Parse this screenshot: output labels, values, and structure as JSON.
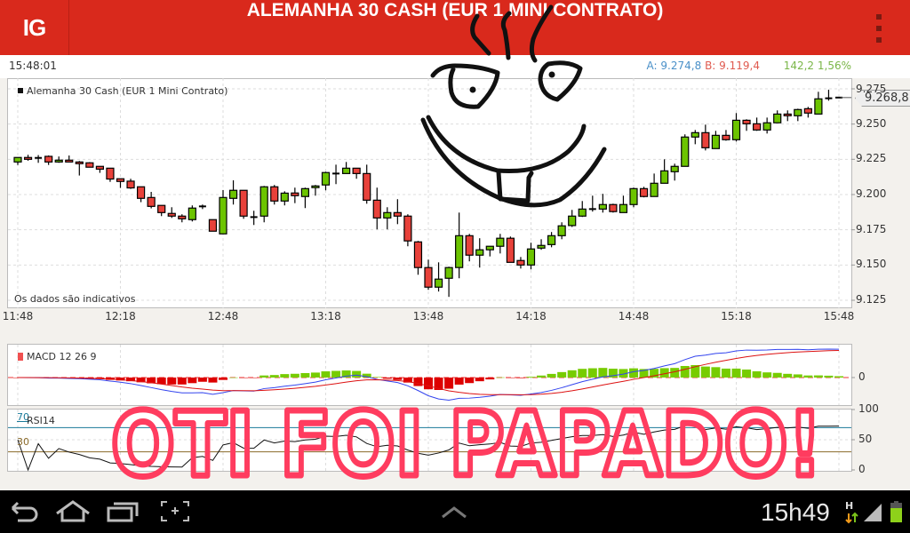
{
  "header": {
    "logo": "IG",
    "title": "ALEMANHA 30 CASH (EUR 1 MINI CONTRATO)",
    "menu_icon": "overflow-menu-icon"
  },
  "quote": {
    "time": "15:48:01",
    "ask_label": "A:",
    "ask": "9.274,8",
    "bid_label": "B:",
    "bid": "9.119,4",
    "change": "142,2",
    "change_pct": "1,56%",
    "colors": {
      "ask": "#4a90c8",
      "bid": "#e05a4f",
      "change": "#7ab648"
    }
  },
  "chart": {
    "instrument": "Alemanha 30 Cash (EUR 1 Mini Contrato)",
    "note": "Os dados são indicativos",
    "last_price": "9.268,8"
  },
  "chart_data": [
    {
      "type": "candlestick",
      "title": "Alemanha 30 Cash (EUR 1 Mini Contrato)",
      "interval_minutes": 3,
      "xlabels": [
        "11:48",
        "12:18",
        "12:48",
        "13:18",
        "13:48",
        "14:18",
        "14:48",
        "15:18",
        "15:48"
      ],
      "yticks": [
        "9.275",
        "9.250",
        "9.225",
        "9.200",
        "9.175",
        "9.150",
        "9.125"
      ],
      "ylim": [
        9125,
        9275
      ],
      "grid": true,
      "last_price": 9268.8,
      "colors": {
        "up": "#6cc400",
        "down": "#e8413a"
      },
      "ohlc": [
        [
          9223.1,
          9226.3,
          9221,
          9226.3
        ],
        [
          9226.3,
          9228.2,
          9224,
          9225
        ],
        [
          9226,
          9228,
          9222.5,
          9226
        ],
        [
          9227.1,
          9227.7,
          9221,
          9223.1
        ],
        [
          9223.1,
          9227,
          9222.5,
          9224.4
        ],
        [
          9224.4,
          9227.7,
          9223,
          9223.1
        ],
        [
          9223.1,
          9223.8,
          9213.5,
          9221.9
        ],
        [
          9222.5,
          9223,
          9219.4,
          9219.4
        ],
        [
          9220,
          9220,
          9215.4,
          9218
        ],
        [
          9218.7,
          9218.7,
          9209,
          9211
        ],
        [
          9211.2,
          9211.2,
          9204.7,
          9209.3
        ],
        [
          9209.5,
          9211.2,
          9204,
          9204.7
        ],
        [
          9205.5,
          9205.5,
          9194.6,
          9197.3
        ],
        [
          9197.9,
          9201.9,
          9190.2,
          9191.6
        ],
        [
          9192.3,
          9192.3,
          9184.7,
          9187.2
        ],
        [
          9186.6,
          9191,
          9183.4,
          9184.7
        ],
        [
          9184.7,
          9186,
          9180.3,
          9182.8
        ],
        [
          9182.2,
          9192.3,
          9180.9,
          9190.4
        ],
        [
          9191.6,
          9192.9,
          9189.7,
          9191.6
        ],
        [
          9182.2,
          9182.2,
          9174,
          9174
        ],
        [
          9172.1,
          9203.2,
          9172.1,
          9197.9
        ],
        [
          9197.3,
          9210.1,
          9192.9,
          9203
        ],
        [
          9203,
          9203,
          9182.8,
          9184.7
        ],
        [
          9184,
          9188.5,
          9178.4,
          9184
        ],
        [
          9184.7,
          9206.1,
          9180.3,
          9205.5
        ],
        [
          9205.5,
          9206.8,
          9192.9,
          9195.4
        ],
        [
          9195.4,
          9202.3,
          9192.3,
          9201
        ],
        [
          9201.1,
          9204.9,
          9193.9,
          9199.2
        ],
        [
          9198.6,
          9204.9,
          9190.4,
          9204.2
        ],
        [
          9204.9,
          9206.8,
          9199.2,
          9206.1
        ],
        [
          9206.8,
          9216.2,
          9203,
          9215.6
        ],
        [
          9214.9,
          9221.2,
          9207.4,
          9214.9
        ],
        [
          9214.9,
          9223.1,
          9214.9,
          9218.7
        ],
        [
          9218.7,
          9218.7,
          9211.2,
          9214.9
        ],
        [
          9214.9,
          9221.2,
          9193.5,
          9196
        ],
        [
          9196,
          9204.9,
          9175.3,
          9183.4
        ],
        [
          9183.4,
          9191,
          9175.3,
          9187.2
        ],
        [
          9187.2,
          9196.7,
          9179,
          9184.7
        ],
        [
          9184.7,
          9186,
          9163.3,
          9167.1
        ],
        [
          9166.4,
          9167.1,
          9143.1,
          9148.2
        ],
        [
          9148.2,
          9153.8,
          9132.4,
          9134.3
        ],
        [
          9134.3,
          9151.9,
          9131.2,
          9140
        ],
        [
          9140.6,
          9148.8,
          9127.4,
          9148.2
        ],
        [
          9148.2,
          9187.2,
          9140.6,
          9170.8
        ],
        [
          9170.8,
          9172.1,
          9152.6,
          9157
        ],
        [
          9157,
          9169,
          9148.2,
          9160.8
        ],
        [
          9160.8,
          9163.3,
          9156.1,
          9163.3
        ],
        [
          9163.3,
          9172.1,
          9158.2,
          9169
        ],
        [
          9169,
          9170.2,
          9151.9,
          9151.9
        ],
        [
          9153.2,
          9155.7,
          9147.5,
          9150
        ],
        [
          9150,
          9165.8,
          9146.9,
          9161.4
        ],
        [
          9162,
          9168.3,
          9160.8,
          9163.9
        ],
        [
          9164.5,
          9173.4,
          9162.6,
          9170.8
        ],
        [
          9170.8,
          9180.3,
          9168.3,
          9177.8
        ],
        [
          9178,
          9189.1,
          9177,
          9184.7
        ],
        [
          9184.7,
          9195.4,
          9184.1,
          9189.7
        ],
        [
          9189.7,
          9199.2,
          9187.9,
          9189.7
        ],
        [
          9189.7,
          9200.5,
          9187.2,
          9192.9
        ],
        [
          9192.9,
          9193.5,
          9187.2,
          9187.9
        ],
        [
          9187.2,
          9199.2,
          9187.2,
          9192.9
        ],
        [
          9192.9,
          9204.9,
          9191,
          9204.2
        ],
        [
          9204.2,
          9205.5,
          9198,
          9198.6
        ],
        [
          9198.6,
          9214.9,
          9198.6,
          9208
        ],
        [
          9208,
          9225,
          9208,
          9216.8
        ],
        [
          9216.2,
          9221.9,
          9209.9,
          9220
        ],
        [
          9220,
          9242.7,
          9220,
          9240.8
        ],
        [
          9240.8,
          9245.8,
          9235.7,
          9243.9
        ],
        [
          9243.9,
          9249.6,
          9231.3,
          9233.2
        ],
        [
          9232.6,
          9245.2,
          9232.6,
          9242
        ],
        [
          9242,
          9245.8,
          9238.2,
          9238.9
        ],
        [
          9238.9,
          9257.8,
          9237.6,
          9252.7
        ],
        [
          9252.7,
          9253.4,
          9245.2,
          9250.2
        ],
        [
          9250.2,
          9254.6,
          9245.2,
          9245.8
        ],
        [
          9245.8,
          9254.6,
          9243.3,
          9250.9
        ],
        [
          9250.9,
          9259.7,
          9250.9,
          9257.1
        ],
        [
          9257.1,
          9259.7,
          9252.1,
          9255.9
        ],
        [
          9255.9,
          9260.9,
          9252.1,
          9260.3
        ],
        [
          9260.9,
          9262.2,
          9254.6,
          9257.8
        ],
        [
          9257.1,
          9272.9,
          9257.1,
          9267.9
        ],
        [
          9268.3,
          9274.4,
          9266.6,
          9268.3
        ],
        [
          9268.5,
          9268.8,
          9268.5,
          9268.8
        ]
      ]
    },
    {
      "type": "line",
      "title": "MACD 12 26 9",
      "label": "MACD 12 26 9",
      "yticks": [
        "0"
      ],
      "colors": {
        "macd": "#3344ee",
        "signal": "#dd1111",
        "hist_up": "#77cc00",
        "hist_down": "#dd0000"
      }
    },
    {
      "type": "line",
      "title": "RSI14",
      "label": "RSI14",
      "levels": [
        "70",
        "30"
      ],
      "yticks": [
        "100",
        "50",
        "0"
      ],
      "ylim": [
        0,
        100
      ],
      "colors": {
        "line": "#111111",
        "upper": "#1a7a9a",
        "lower": "#8a6a2a"
      }
    }
  ],
  "statusbar": {
    "time": "15h49",
    "network": "H",
    "nav_icons": [
      "back-icon",
      "home-icon",
      "recent-apps-icon",
      "screenshot-icon",
      "chevron-up-icon"
    ],
    "battery_level": 0.8
  },
  "doodle": {
    "text": "OTI FOI PAPADO!"
  }
}
